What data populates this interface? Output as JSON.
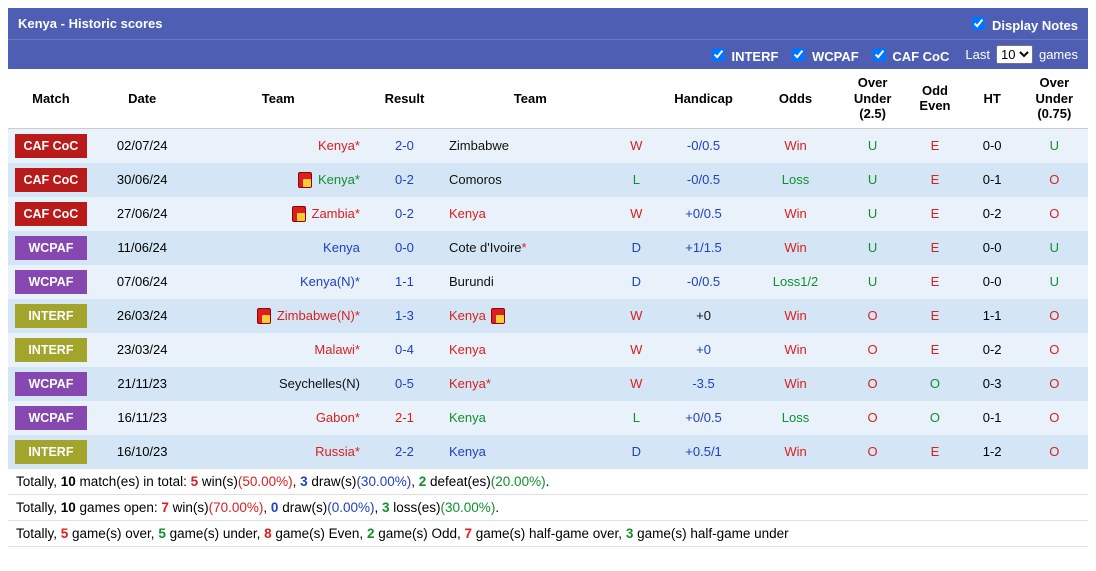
{
  "header": {
    "title": "Kenya - Historic scores",
    "display_notes_label": "Display Notes",
    "display_notes_checked": true
  },
  "filters": {
    "items": [
      {
        "label": "INTERF",
        "checked": true
      },
      {
        "label": "WCPAF",
        "checked": true
      },
      {
        "label": "CAF CoC",
        "checked": true
      }
    ],
    "last_prefix": "Last",
    "last_suffix": "games",
    "last_value": "10"
  },
  "columns": [
    "Match",
    "Date",
    "Team",
    "Result",
    "Team",
    "",
    "Handicap",
    "Odds",
    "Over Under (2.5)",
    "Odd Even",
    "HT",
    "Over Under (0.75)"
  ],
  "badge_colors": {
    "CAF CoC": "#b91b1b",
    "WCPAF": "#8648b0",
    "INTERF": "#a2a42c"
  },
  "text_colors": {
    "red": "#d82020",
    "blue": "#2040c0",
    "green": "#118f2e",
    "black": "#111"
  },
  "rows": [
    {
      "comp": "CAF CoC",
      "date": "02/07/24",
      "home": "Kenya",
      "home_suffix": "*",
      "home_color": "red",
      "home_card": false,
      "score": "2-0",
      "score_color": "blue",
      "away": "Zimbabwe",
      "away_suffix": "",
      "away_color": "black",
      "away_card": false,
      "wdl": "W",
      "wdl_color": "red",
      "handicap": "-0/0.5",
      "hc_color": "blue",
      "odds": "Win",
      "odds_color": "red",
      "ou25": "U",
      "ou25_color": "green",
      "oe": "E",
      "oe_color": "red",
      "ht": "0-0",
      "ou075": "U",
      "ou075_color": "green"
    },
    {
      "comp": "CAF CoC",
      "date": "30/06/24",
      "home": "Kenya",
      "home_suffix": "*",
      "home_color": "green",
      "home_card": true,
      "score": "0-2",
      "score_color": "blue",
      "away": "Comoros",
      "away_suffix": "",
      "away_color": "black",
      "away_card": false,
      "wdl": "L",
      "wdl_color": "green",
      "handicap": "-0/0.5",
      "hc_color": "blue",
      "odds": "Loss",
      "odds_color": "green",
      "ou25": "U",
      "ou25_color": "green",
      "oe": "E",
      "oe_color": "red",
      "ht": "0-1",
      "ou075": "O",
      "ou075_color": "red"
    },
    {
      "comp": "CAF CoC",
      "date": "27/06/24",
      "home": "Zambia",
      "home_suffix": "*",
      "home_color": "red",
      "home_card": true,
      "score": "0-2",
      "score_color": "blue",
      "away": "Kenya",
      "away_suffix": "",
      "away_color": "red",
      "away_card": false,
      "wdl": "W",
      "wdl_color": "red",
      "handicap": "+0/0.5",
      "hc_color": "blue",
      "odds": "Win",
      "odds_color": "red",
      "ou25": "U",
      "ou25_color": "green",
      "oe": "E",
      "oe_color": "red",
      "ht": "0-2",
      "ou075": "O",
      "ou075_color": "red"
    },
    {
      "comp": "WCPAF",
      "date": "11/06/24",
      "home": "Kenya",
      "home_suffix": "",
      "home_color": "blue",
      "home_card": false,
      "score": "0-0",
      "score_color": "blue",
      "away": "Cote d'Ivoire",
      "away_suffix": "*",
      "away_color": "black",
      "away_card": false,
      "wdl": "D",
      "wdl_color": "blue",
      "handicap": "+1/1.5",
      "hc_color": "blue",
      "odds": "Win",
      "odds_color": "red",
      "ou25": "U",
      "ou25_color": "green",
      "oe": "E",
      "oe_color": "red",
      "ht": "0-0",
      "ou075": "U",
      "ou075_color": "green"
    },
    {
      "comp": "WCPAF",
      "date": "07/06/24",
      "home": "Kenya",
      "home_suffix": "(N)*",
      "home_color": "blue",
      "home_card": false,
      "score": "1-1",
      "score_color": "blue",
      "away": "Burundi",
      "away_suffix": "",
      "away_color": "black",
      "away_card": false,
      "wdl": "D",
      "wdl_color": "blue",
      "handicap": "-0/0.5",
      "hc_color": "blue",
      "odds": "Loss1/2",
      "odds_color": "green",
      "ou25": "U",
      "ou25_color": "green",
      "oe": "E",
      "oe_color": "red",
      "ht": "0-0",
      "ou075": "U",
      "ou075_color": "green"
    },
    {
      "comp": "INTERF",
      "date": "26/03/24",
      "home": "Zimbabwe",
      "home_suffix": "(N)*",
      "home_color": "red",
      "home_card": true,
      "score": "1-3",
      "score_color": "blue",
      "away": "Kenya",
      "away_suffix": "",
      "away_color": "red",
      "away_card": true,
      "wdl": "W",
      "wdl_color": "red",
      "handicap": "+0",
      "hc_color": "black",
      "odds": "Win",
      "odds_color": "red",
      "ou25": "O",
      "ou25_color": "red",
      "oe": "E",
      "oe_color": "red",
      "ht": "1-1",
      "ou075": "O",
      "ou075_color": "red"
    },
    {
      "comp": "INTERF",
      "date": "23/03/24",
      "home": "Malawi",
      "home_suffix": "*",
      "home_color": "red",
      "home_card": false,
      "score": "0-4",
      "score_color": "blue",
      "away": "Kenya",
      "away_suffix": "",
      "away_color": "red",
      "away_card": false,
      "wdl": "W",
      "wdl_color": "red",
      "handicap": "+0",
      "hc_color": "blue",
      "odds": "Win",
      "odds_color": "red",
      "ou25": "O",
      "ou25_color": "red",
      "oe": "E",
      "oe_color": "red",
      "ht": "0-2",
      "ou075": "O",
      "ou075_color": "red"
    },
    {
      "comp": "WCPAF",
      "date": "21/11/23",
      "home": "Seychelles",
      "home_suffix": "(N)",
      "home_color": "black",
      "home_card": false,
      "score": "0-5",
      "score_color": "blue",
      "away": "Kenya",
      "away_suffix": "*",
      "away_color": "red",
      "away_card": false,
      "wdl": "W",
      "wdl_color": "red",
      "handicap": "-3.5",
      "hc_color": "blue",
      "odds": "Win",
      "odds_color": "red",
      "ou25": "O",
      "ou25_color": "red",
      "oe": "O",
      "oe_color": "green",
      "ht": "0-3",
      "ou075": "O",
      "ou075_color": "red"
    },
    {
      "comp": "WCPAF",
      "date": "16/11/23",
      "home": "Gabon",
      "home_suffix": "*",
      "home_color": "red",
      "home_card": false,
      "score": "2-1",
      "score_color": "red",
      "away": "Kenya",
      "away_suffix": "",
      "away_color": "green",
      "away_card": false,
      "wdl": "L",
      "wdl_color": "green",
      "handicap": "+0/0.5",
      "hc_color": "blue",
      "odds": "Loss",
      "odds_color": "green",
      "ou25": "O",
      "ou25_color": "red",
      "oe": "O",
      "oe_color": "green",
      "ht": "0-1",
      "ou075": "O",
      "ou075_color": "red"
    },
    {
      "comp": "INTERF",
      "date": "16/10/23",
      "home": "Russia",
      "home_suffix": "*",
      "home_color": "red",
      "home_card": false,
      "score": "2-2",
      "score_color": "blue",
      "away": "Kenya",
      "away_suffix": "",
      "away_color": "blue",
      "away_card": false,
      "wdl": "D",
      "wdl_color": "blue",
      "handicap": "+0.5/1",
      "hc_color": "blue",
      "odds": "Win",
      "odds_color": "red",
      "ou25": "O",
      "ou25_color": "red",
      "oe": "E",
      "oe_color": "red",
      "ht": "1-2",
      "ou075": "O",
      "ou075_color": "red"
    }
  ],
  "summary": {
    "line1_pre": "Totally, ",
    "line1_a_n": "10",
    "line1_a_t": " match(es) in total: ",
    "line1_b_n": "5",
    "line1_b_t": " win(s)",
    "line1_b_p": "(50.00%)",
    "line1_c_sep": ", ",
    "line1_c_n": "3",
    "line1_c_t": " draw(s)",
    "line1_c_p": "(30.00%)",
    "line1_d_sep": ", ",
    "line1_d_n": "2",
    "line1_d_t": " defeat(es)",
    "line1_d_p": "(20.00%)",
    "line1_end": ".",
    "line2_pre": "Totally, ",
    "line2_a_n": "10",
    "line2_a_t": " games open: ",
    "line2_b_n": "7",
    "line2_b_t": " win(s)",
    "line2_b_p": "(70.00%)",
    "line2_c_sep": ", ",
    "line2_c_n": "0",
    "line2_c_t": " draw(s)",
    "line2_c_p": "(0.00%)",
    "line2_d_sep": ", ",
    "line2_d_n": "3",
    "line2_d_t": " loss(es)",
    "line2_d_p": "(30.00%)",
    "line2_end": ".",
    "line3_pre": "Totally, ",
    "line3_a_n": "5",
    "line3_a_t": " game(s) over, ",
    "line3_b_n": "5",
    "line3_b_t": " game(s) under, ",
    "line3_c_n": "8",
    "line3_c_t": " game(s) Even, ",
    "line3_d_n": "2",
    "line3_d_t": " game(s) Odd, ",
    "line3_e_n": "7",
    "line3_e_t": " game(s) half-game over, ",
    "line3_f_n": "3",
    "line3_f_t": " game(s) half-game under"
  }
}
